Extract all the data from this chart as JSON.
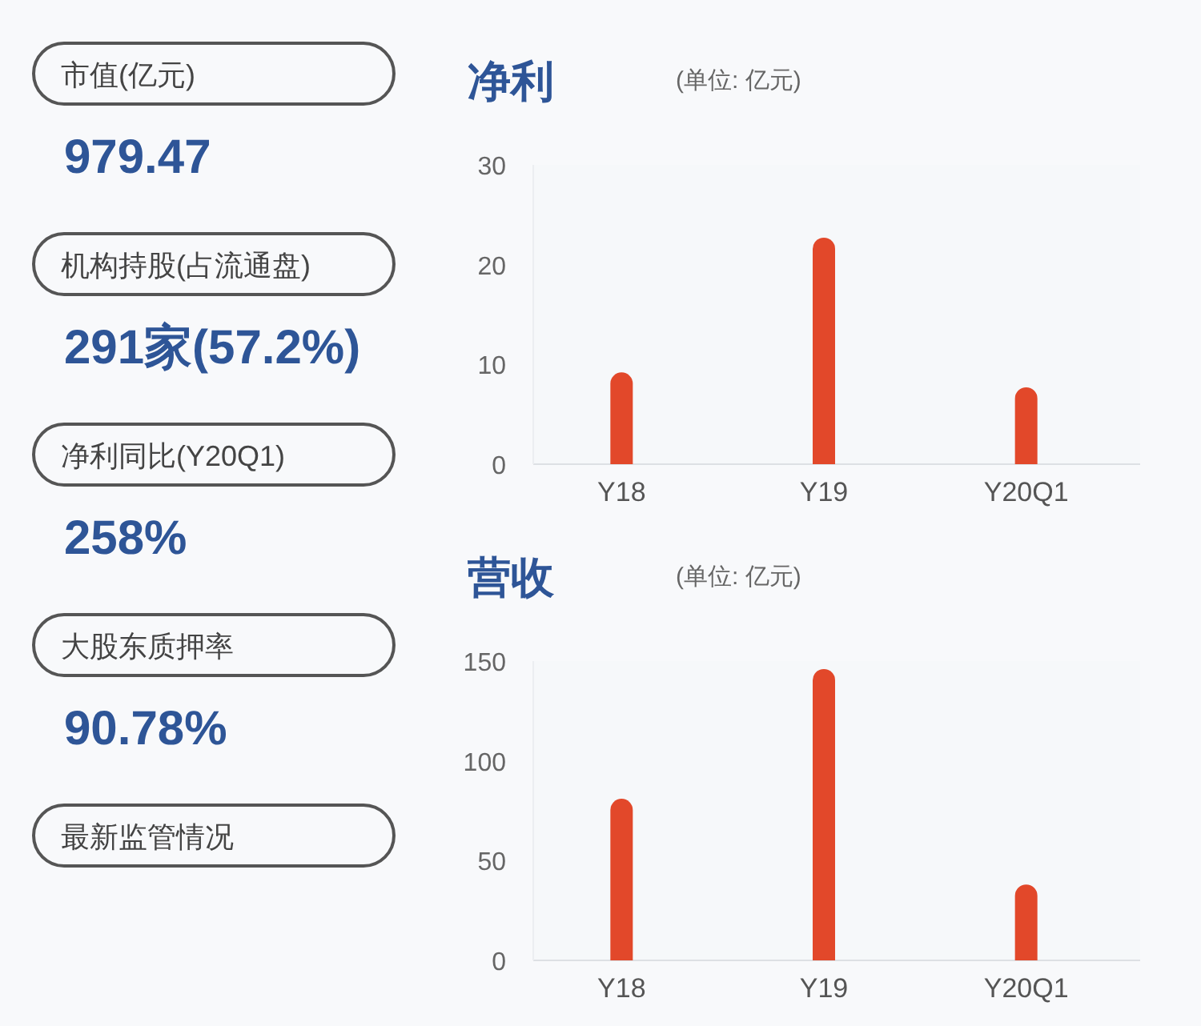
{
  "chart_data": [
    {
      "type": "other",
      "annotations": [
        "市值(亿元)",
        "979.47",
        "机构持股(占流通盘)",
        "291家(57.2%)",
        "净利同比(Y20Q1)",
        "258%",
        "大股东质押率",
        "90.78%",
        "最新监管情况"
      ]
    },
    {
      "type": "bar",
      "title": "净利",
      "subtitle": "(单位: 亿元)",
      "categories": [
        "Y18",
        "Y19",
        "Y20Q1"
      ],
      "values": [
        9.2,
        22.7,
        7.7
      ],
      "color": "#e2482a",
      "ylim": [
        0,
        30
      ],
      "yticks": [
        0,
        10,
        20,
        30
      ]
    },
    {
      "type": "bar",
      "title": "营收",
      "subtitle": "(单位: 亿元)",
      "categories": [
        "Y18",
        "Y19",
        "Y20Q1"
      ],
      "values": [
        81,
        146,
        38
      ],
      "color": "#e2482a",
      "ylim": [
        0,
        150
      ],
      "yticks": [
        0,
        50,
        100,
        150
      ]
    }
  ]
}
